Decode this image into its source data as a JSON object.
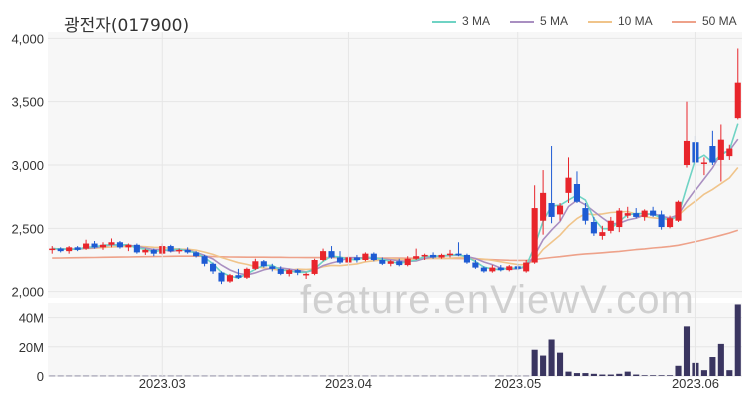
{
  "title": "광전자(017900)",
  "watermark": "feature.enViewV.com",
  "colors": {
    "up": "#e8252b",
    "down": "#1e5bd3",
    "ma3": "#6fd3c4",
    "ma5": "#a98fc1",
    "ma10": "#f0c48a",
    "ma50": "#eea28a",
    "volume": "#3a3560",
    "grid": "#e6e6e6",
    "plot_bg": "#f7f7f7"
  },
  "legend": [
    {
      "label": "3 MA",
      "color_key": "ma3"
    },
    {
      "label": "5 MA",
      "color_key": "ma5"
    },
    {
      "label": "10 MA",
      "color_key": "ma10"
    },
    {
      "label": "50 MA",
      "color_key": "ma50"
    }
  ],
  "chart_data": {
    "type": "candlestick",
    "title": "광전자(017900)",
    "price_axis": {
      "ticks": [
        "4,000",
        "3,500",
        "3,000",
        "2,500",
        "2,000"
      ],
      "tick_values": [
        4000,
        3500,
        3000,
        2500,
        2000
      ],
      "ylim": [
        1950,
        4050
      ]
    },
    "volume_axis": {
      "ticks": [
        "40M",
        "20M",
        "0"
      ],
      "tick_values": [
        40,
        20,
        0
      ],
      "unit": "M",
      "ylim": [
        0,
        50
      ]
    },
    "x_ticks": [
      {
        "label": "2023.03",
        "index": 13
      },
      {
        "label": "2023.04",
        "index": 35
      },
      {
        "label": "2023.05",
        "index": 55
      },
      {
        "label": "2023.06",
        "index": 76
      }
    ],
    "candles": [
      [
        2330,
        2360,
        2300,
        2340,
        1
      ],
      [
        2340,
        2350,
        2310,
        2320,
        1
      ],
      [
        2320,
        2360,
        2300,
        2350,
        1
      ],
      [
        2350,
        2360,
        2320,
        2330,
        1
      ],
      [
        2340,
        2410,
        2330,
        2380,
        1
      ],
      [
        2380,
        2400,
        2340,
        2350,
        1
      ],
      [
        2350,
        2390,
        2330,
        2370,
        1
      ],
      [
        2370,
        2420,
        2350,
        2390,
        1
      ],
      [
        2390,
        2400,
        2340,
        2350,
        1
      ],
      [
        2350,
        2380,
        2320,
        2370,
        1
      ],
      [
        2370,
        2380,
        2300,
        2310,
        1
      ],
      [
        2310,
        2340,
        2290,
        2330,
        1
      ],
      [
        2330,
        2340,
        2280,
        2300,
        1
      ],
      [
        2300,
        2380,
        2290,
        2360,
        1
      ],
      [
        2360,
        2370,
        2310,
        2320,
        1
      ],
      [
        2320,
        2340,
        2300,
        2330,
        1
      ],
      [
        2330,
        2350,
        2300,
        2310,
        1
      ],
      [
        2310,
        2320,
        2270,
        2280,
        1
      ],
      [
        2280,
        2290,
        2200,
        2220,
        1
      ],
      [
        2220,
        2230,
        2140,
        2160,
        1
      ],
      [
        2150,
        2160,
        2060,
        2080,
        1
      ],
      [
        2080,
        2140,
        2070,
        2130,
        1
      ],
      [
        2130,
        2180,
        2100,
        2110,
        1
      ],
      [
        2110,
        2190,
        2100,
        2180,
        1
      ],
      [
        2180,
        2260,
        2170,
        2240,
        1
      ],
      [
        2240,
        2250,
        2190,
        2200,
        1
      ],
      [
        2200,
        2220,
        2160,
        2180,
        1
      ],
      [
        2180,
        2200,
        2130,
        2140,
        1
      ],
      [
        2140,
        2180,
        2120,
        2170,
        1
      ],
      [
        2170,
        2180,
        2130,
        2150,
        1
      ],
      [
        2130,
        2150,
        2100,
        2140,
        1
      ],
      [
        2140,
        2260,
        2130,
        2250,
        1
      ],
      [
        2250,
        2340,
        2240,
        2320,
        1
      ],
      [
        2320,
        2360,
        2260,
        2270,
        1
      ],
      [
        2270,
        2320,
        2220,
        2230,
        1
      ],
      [
        2230,
        2280,
        2210,
        2270,
        1
      ],
      [
        2270,
        2290,
        2230,
        2250,
        1
      ],
      [
        2250,
        2310,
        2240,
        2300,
        1
      ],
      [
        2300,
        2310,
        2240,
        2250,
        1
      ],
      [
        2250,
        2270,
        2210,
        2220,
        1
      ],
      [
        2220,
        2250,
        2200,
        2240,
        1
      ],
      [
        2240,
        2260,
        2200,
        2210,
        1
      ],
      [
        2210,
        2280,
        2200,
        2260,
        1
      ],
      [
        2260,
        2340,
        2250,
        2280,
        1
      ],
      [
        2280,
        2300,
        2250,
        2290,
        1
      ],
      [
        2290,
        2310,
        2260,
        2270,
        1
      ],
      [
        2270,
        2300,
        2260,
        2290,
        1
      ],
      [
        2290,
        2330,
        2270,
        2300,
        1
      ],
      [
        2300,
        2390,
        2280,
        2290,
        1
      ],
      [
        2290,
        2300,
        2220,
        2230,
        1
      ],
      [
        2230,
        2250,
        2180,
        2190,
        1
      ],
      [
        2190,
        2200,
        2150,
        2160,
        1
      ],
      [
        2160,
        2210,
        2150,
        2190,
        1
      ],
      [
        2190,
        2210,
        2160,
        2170,
        1
      ],
      [
        2170,
        2210,
        2160,
        2200,
        1
      ],
      [
        2200,
        2220,
        2170,
        2180,
        1
      ],
      [
        2160,
        2250,
        2150,
        2230,
        1
      ],
      [
        2230,
        2840,
        2220,
        2660,
        1
      ],
      [
        2560,
        2960,
        2450,
        2780,
        1
      ],
      [
        2700,
        3150,
        2540,
        2590,
        1
      ],
      [
        2610,
        2700,
        2560,
        2680,
        1
      ],
      [
        2780,
        3060,
        2700,
        2900,
        1
      ],
      [
        2850,
        2950,
        2700,
        2710,
        1
      ],
      [
        2660,
        2700,
        2530,
        2560,
        1
      ],
      [
        2550,
        2590,
        2440,
        2460,
        1
      ],
      [
        2440,
        2520,
        2410,
        2470,
        1
      ],
      [
        2480,
        2590,
        2460,
        2560,
        1
      ],
      [
        2510,
        2660,
        2470,
        2640,
        1
      ],
      [
        2600,
        2670,
        2580,
        2620,
        1
      ],
      [
        2620,
        2660,
        2580,
        2590,
        1
      ],
      [
        2590,
        2650,
        2560,
        2640,
        1
      ],
      [
        2640,
        2670,
        2590,
        2600,
        1
      ],
      [
        2610,
        2640,
        2490,
        2510,
        1
      ],
      [
        2510,
        2600,
        2500,
        2580,
        1
      ],
      [
        2560,
        2720,
        2550,
        2710,
        1
      ],
      [
        3000,
        3500,
        2980,
        3190,
        1
      ],
      [
        3180,
        3230,
        3000,
        3020,
        1
      ],
      [
        3010,
        3060,
        2920,
        3020,
        1
      ],
      [
        3150,
        3270,
        3000,
        3020,
        1
      ],
      [
        3040,
        3320,
        2870,
        3200,
        1
      ],
      [
        3070,
        3160,
        3040,
        3130,
        1
      ],
      [
        3370,
        3920,
        3360,
        3650,
        1
      ]
    ],
    "ma3": [
      2340,
      2337,
      2337,
      2333,
      2353,
      2353,
      2367,
      2370,
      2370,
      2370,
      2343,
      2337,
      2313,
      2330,
      2327,
      2337,
      2320,
      2307,
      2270,
      2220,
      2153,
      2123,
      2107,
      2140,
      2177,
      2207,
      2207,
      2173,
      2163,
      2153,
      2153,
      2180,
      2240,
      2280,
      2273,
      2257,
      2250,
      2273,
      2267,
      2257,
      2237,
      2223,
      2237,
      2250,
      2277,
      2280,
      2283,
      2287,
      2293,
      2273,
      2237,
      2193,
      2180,
      2173,
      2187,
      2183,
      2203,
      2357,
      2557,
      2677,
      2683,
      2723,
      2763,
      2723,
      2577,
      2497,
      2497,
      2557,
      2607,
      2617,
      2617,
      2610,
      2583,
      2563,
      2600,
      2827,
      3040,
      3077,
      3020,
      3080,
      3117,
      3327
    ],
    "ma5": [
      2340,
      2335,
      2337,
      2335,
      2344,
      2346,
      2360,
      2368,
      2368,
      2366,
      2358,
      2344,
      2332,
      2334,
      2318,
      2328,
      2330,
      2310,
      2286,
      2258,
      2210,
      2171,
      2144,
      2132,
      2148,
      2172,
      2186,
      2188,
      2178,
      2168,
      2156,
      2170,
      2206,
      2226,
      2242,
      2268,
      2268,
      2266,
      2262,
      2258,
      2252,
      2244,
      2238,
      2242,
      2262,
      2276,
      2280,
      2286,
      2288,
      2278,
      2262,
      2234,
      2214,
      2186,
      2180,
      2180,
      2196,
      2286,
      2410,
      2486,
      2554,
      2672,
      2722,
      2686,
      2634,
      2582,
      2536,
      2540,
      2566,
      2580,
      2606,
      2618,
      2594,
      2582,
      2606,
      2712,
      2804,
      2890,
      2978,
      3090,
      3114,
      3204
    ],
    "ma10": [
      2340,
      2338,
      2337,
      2336,
      2340,
      2343,
      2348,
      2353,
      2356,
      2356,
      2358,
      2355,
      2350,
      2349,
      2342,
      2336,
      2335,
      2327,
      2312,
      2294,
      2270,
      2249,
      2229,
      2215,
      2198,
      2187,
      2178,
      2168,
      2171,
      2177,
      2176,
      2178,
      2197,
      2207,
      2205,
      2212,
      2219,
      2236,
      2244,
      2250,
      2260,
      2256,
      2252,
      2253,
      2260,
      2264,
      2262,
      2264,
      2268,
      2268,
      2262,
      2256,
      2248,
      2236,
      2224,
      2214,
      2212,
      2250,
      2334,
      2390,
      2446,
      2520,
      2578,
      2616,
      2608,
      2614,
      2625,
      2629,
      2633,
      2612,
      2590,
      2583,
      2577,
      2580,
      2602,
      2664,
      2714,
      2769,
      2807,
      2852,
      2898,
      2980
    ],
    "ma50": [
      2265,
      2266,
      2267,
      2268,
      2269,
      2270,
      2271,
      2272,
      2273,
      2274,
      2275,
      2276,
      2277,
      2278,
      2279,
      2280,
      2280,
      2280,
      2279,
      2277,
      2275,
      2274,
      2273,
      2272,
      2272,
      2272,
      2271,
      2271,
      2270,
      2270,
      2269,
      2269,
      2269,
      2269,
      2268,
      2268,
      2267,
      2267,
      2266,
      2266,
      2265,
      2265,
      2264,
      2264,
      2263,
      2263,
      2262,
      2262,
      2261,
      2260,
      2258,
      2255,
      2252,
      2250,
      2248,
      2247,
      2247,
      2253,
      2262,
      2270,
      2276,
      2284,
      2292,
      2298,
      2302,
      2307,
      2312,
      2318,
      2325,
      2332,
      2338,
      2345,
      2350,
      2357,
      2366,
      2380,
      2395,
      2411,
      2428,
      2445,
      2463,
      2485
    ],
    "volume": [
      0.2,
      0.2,
      0.2,
      0.2,
      0.2,
      0.2,
      0.2,
      0.2,
      0.2,
      0.2,
      0.2,
      0.2,
      0.2,
      0.2,
      0.2,
      0.2,
      0.2,
      0.2,
      0.2,
      0.2,
      0.2,
      0.2,
      0.2,
      0.2,
      0.2,
      0.2,
      0.2,
      0.2,
      0.2,
      0.2,
      0.2,
      0.2,
      0.2,
      0.2,
      0.2,
      0.2,
      0.2,
      0.2,
      0.2,
      0.2,
      0.2,
      0.2,
      0.2,
      0.2,
      0.2,
      0.2,
      0.2,
      0.2,
      0.2,
      0.2,
      0.2,
      0.2,
      0.2,
      0.2,
      0.2,
      0.2,
      0.2,
      18,
      14,
      25,
      16,
      3,
      2,
      2,
      1.5,
      1,
      1,
      1.5,
      3,
      1,
      0.5,
      0.5,
      0.5,
      0.5,
      7,
      34,
      9,
      4,
      13,
      22,
      4,
      49
    ]
  }
}
